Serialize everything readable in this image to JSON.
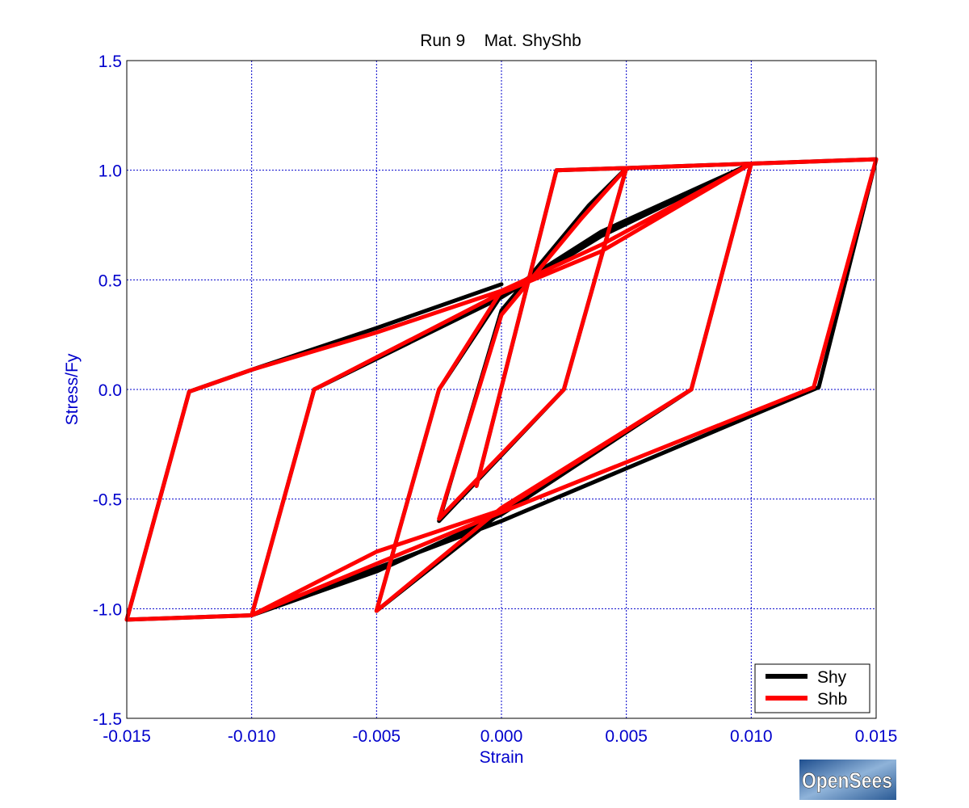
{
  "logo": {
    "text": "OpenSees"
  },
  "colors": {
    "axis_text": "#0000CC",
    "grid": "#0000CC",
    "frame": "#000000"
  },
  "chart_data": {
    "type": "line",
    "title": "Run 9    Mat. ShyShb",
    "xlabel": "Strain",
    "ylabel": "Stress/Fy",
    "xlim": [
      -0.015,
      0.015
    ],
    "ylim": [
      -1.5,
      1.5
    ],
    "xticks": [
      -0.015,
      -0.01,
      -0.005,
      0.0,
      0.005,
      0.01,
      0.015
    ],
    "xtick_labels": [
      "-0.015",
      "-0.010",
      "-0.005",
      "0.000",
      "0.005",
      "0.010",
      "0.015"
    ],
    "yticks": [
      -1.5,
      -1.0,
      -0.5,
      0.0,
      0.5,
      1.0,
      1.5
    ],
    "ytick_labels": [
      "-1.5",
      "-1.0",
      "-0.5",
      "0.0",
      "0.5",
      "1.0",
      "1.5"
    ],
    "grid": true,
    "legend": {
      "placement": "bottom-right"
    },
    "series": [
      {
        "name": "Shy",
        "color": "#000000",
        "points": [
          [
            -0.001,
            -0.44
          ],
          [
            0.0022,
            1.0
          ],
          [
            0.005,
            1.01
          ],
          [
            0.0025,
            0.0
          ],
          [
            -0.0025,
            -0.6
          ],
          [
            0.0,
            0.36
          ],
          [
            0.0035,
            0.84
          ],
          [
            0.005,
            1.01
          ],
          [
            0.01,
            1.03
          ],
          [
            0.0076,
            0.0
          ],
          [
            0.0,
            -0.56
          ],
          [
            -0.005,
            -1.01
          ],
          [
            -0.0025,
            0.0
          ],
          [
            0.0,
            0.43
          ],
          [
            0.004,
            0.72
          ],
          [
            0.01,
            1.03
          ],
          [
            0.015,
            1.05
          ],
          [
            0.0127,
            0.01
          ],
          [
            0.0,
            -0.6
          ],
          [
            -0.01,
            -1.03
          ],
          [
            -0.0075,
            0.0
          ],
          [
            0.0,
            0.42
          ],
          [
            0.004,
            0.7
          ],
          [
            0.01,
            1.03
          ],
          [
            0.0076,
            0.0
          ],
          [
            0.0,
            -0.57
          ],
          [
            -0.005,
            -0.83
          ],
          [
            -0.01,
            -1.03
          ],
          [
            -0.015,
            -1.05
          ],
          [
            -0.0125,
            -0.01
          ],
          [
            -0.01,
            0.09
          ],
          [
            -0.005,
            0.28
          ],
          [
            0.0,
            0.48
          ]
        ]
      },
      {
        "name": "Shb",
        "color": "#FF0000",
        "points": [
          [
            -0.001,
            -0.44
          ],
          [
            0.0022,
            1.0
          ],
          [
            0.005,
            1.01
          ],
          [
            0.0025,
            0.0
          ],
          [
            -0.0025,
            -0.59
          ],
          [
            0.0,
            0.34
          ],
          [
            0.0032,
            0.78
          ],
          [
            0.005,
            1.01
          ],
          [
            0.01,
            1.03
          ],
          [
            0.0076,
            0.0
          ],
          [
            0.0,
            -0.54
          ],
          [
            -0.005,
            -1.01
          ],
          [
            -0.0025,
            0.0
          ],
          [
            0.0,
            0.45
          ],
          [
            0.004,
            0.66
          ],
          [
            0.01,
            1.03
          ],
          [
            0.015,
            1.05
          ],
          [
            0.0125,
            0.01
          ],
          [
            0.0,
            -0.56
          ],
          [
            -0.01,
            -1.03
          ],
          [
            -0.0075,
            0.0
          ],
          [
            0.0,
            0.44
          ],
          [
            0.004,
            0.63
          ],
          [
            0.01,
            1.03
          ],
          [
            0.0076,
            0.0
          ],
          [
            0.0,
            -0.55
          ],
          [
            -0.005,
            -0.74
          ],
          [
            -0.01,
            -1.03
          ],
          [
            -0.015,
            -1.05
          ],
          [
            -0.0125,
            -0.01
          ],
          [
            -0.01,
            0.09
          ],
          [
            -0.005,
            0.26
          ],
          [
            0.0,
            0.45
          ]
        ]
      }
    ]
  }
}
